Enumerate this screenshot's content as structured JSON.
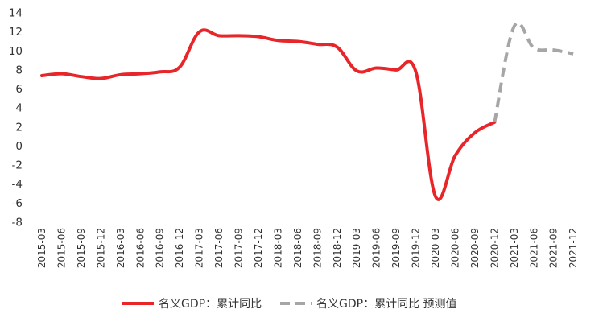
{
  "chart_data": {
    "type": "line",
    "categories": [
      "2015-03",
      "2015-06",
      "2015-09",
      "2015-12",
      "2016-03",
      "2016-06",
      "2016-09",
      "2016-12",
      "2017-03",
      "2017-06",
      "2017-09",
      "2017-12",
      "2018-03",
      "2018-06",
      "2018-09",
      "2018-12",
      "2019-03",
      "2019-06",
      "2019-09",
      "2019-12",
      "2020-03",
      "2020-06",
      "2020-09",
      "2020-12",
      "2021-03",
      "2021-06",
      "2021-09",
      "2021-12"
    ],
    "ylim": [
      -8,
      14
    ],
    "yticks": [
      -8,
      -6,
      -4,
      -2,
      0,
      2,
      4,
      6,
      8,
      10,
      12,
      14
    ],
    "grid": false,
    "legend_position": "bottom-center",
    "series": [
      {
        "name": "名义GDP：累计同比",
        "color": "#e8262a",
        "style": "solid",
        "x": [
          "2015-03",
          "2015-06",
          "2015-09",
          "2015-12",
          "2016-03",
          "2016-06",
          "2016-09",
          "2016-12",
          "2017-03",
          "2017-06",
          "2017-09",
          "2017-12",
          "2018-03",
          "2018-06",
          "2018-09",
          "2018-12",
          "2019-03",
          "2019-06",
          "2019-09",
          "2019-12",
          "2020-03",
          "2020-06",
          "2020-09",
          "2020-12"
        ],
        "values": [
          7.4,
          7.6,
          7.3,
          7.1,
          7.5,
          7.6,
          7.8,
          8.3,
          12.0,
          11.6,
          11.6,
          11.5,
          11.1,
          11.0,
          10.7,
          10.4,
          7.9,
          8.2,
          8.0,
          7.8,
          -5.3,
          -1.0,
          1.4,
          2.5
        ]
      },
      {
        "name": "名义GDP：累计同比 预测值",
        "color": "#a6a6a6",
        "style": "dashed",
        "x": [
          "2020-12",
          "2021-03",
          "2021-06",
          "2021-09",
          "2021-12"
        ],
        "values": [
          2.5,
          12.6,
          10.3,
          10.1,
          9.7
        ]
      }
    ]
  }
}
